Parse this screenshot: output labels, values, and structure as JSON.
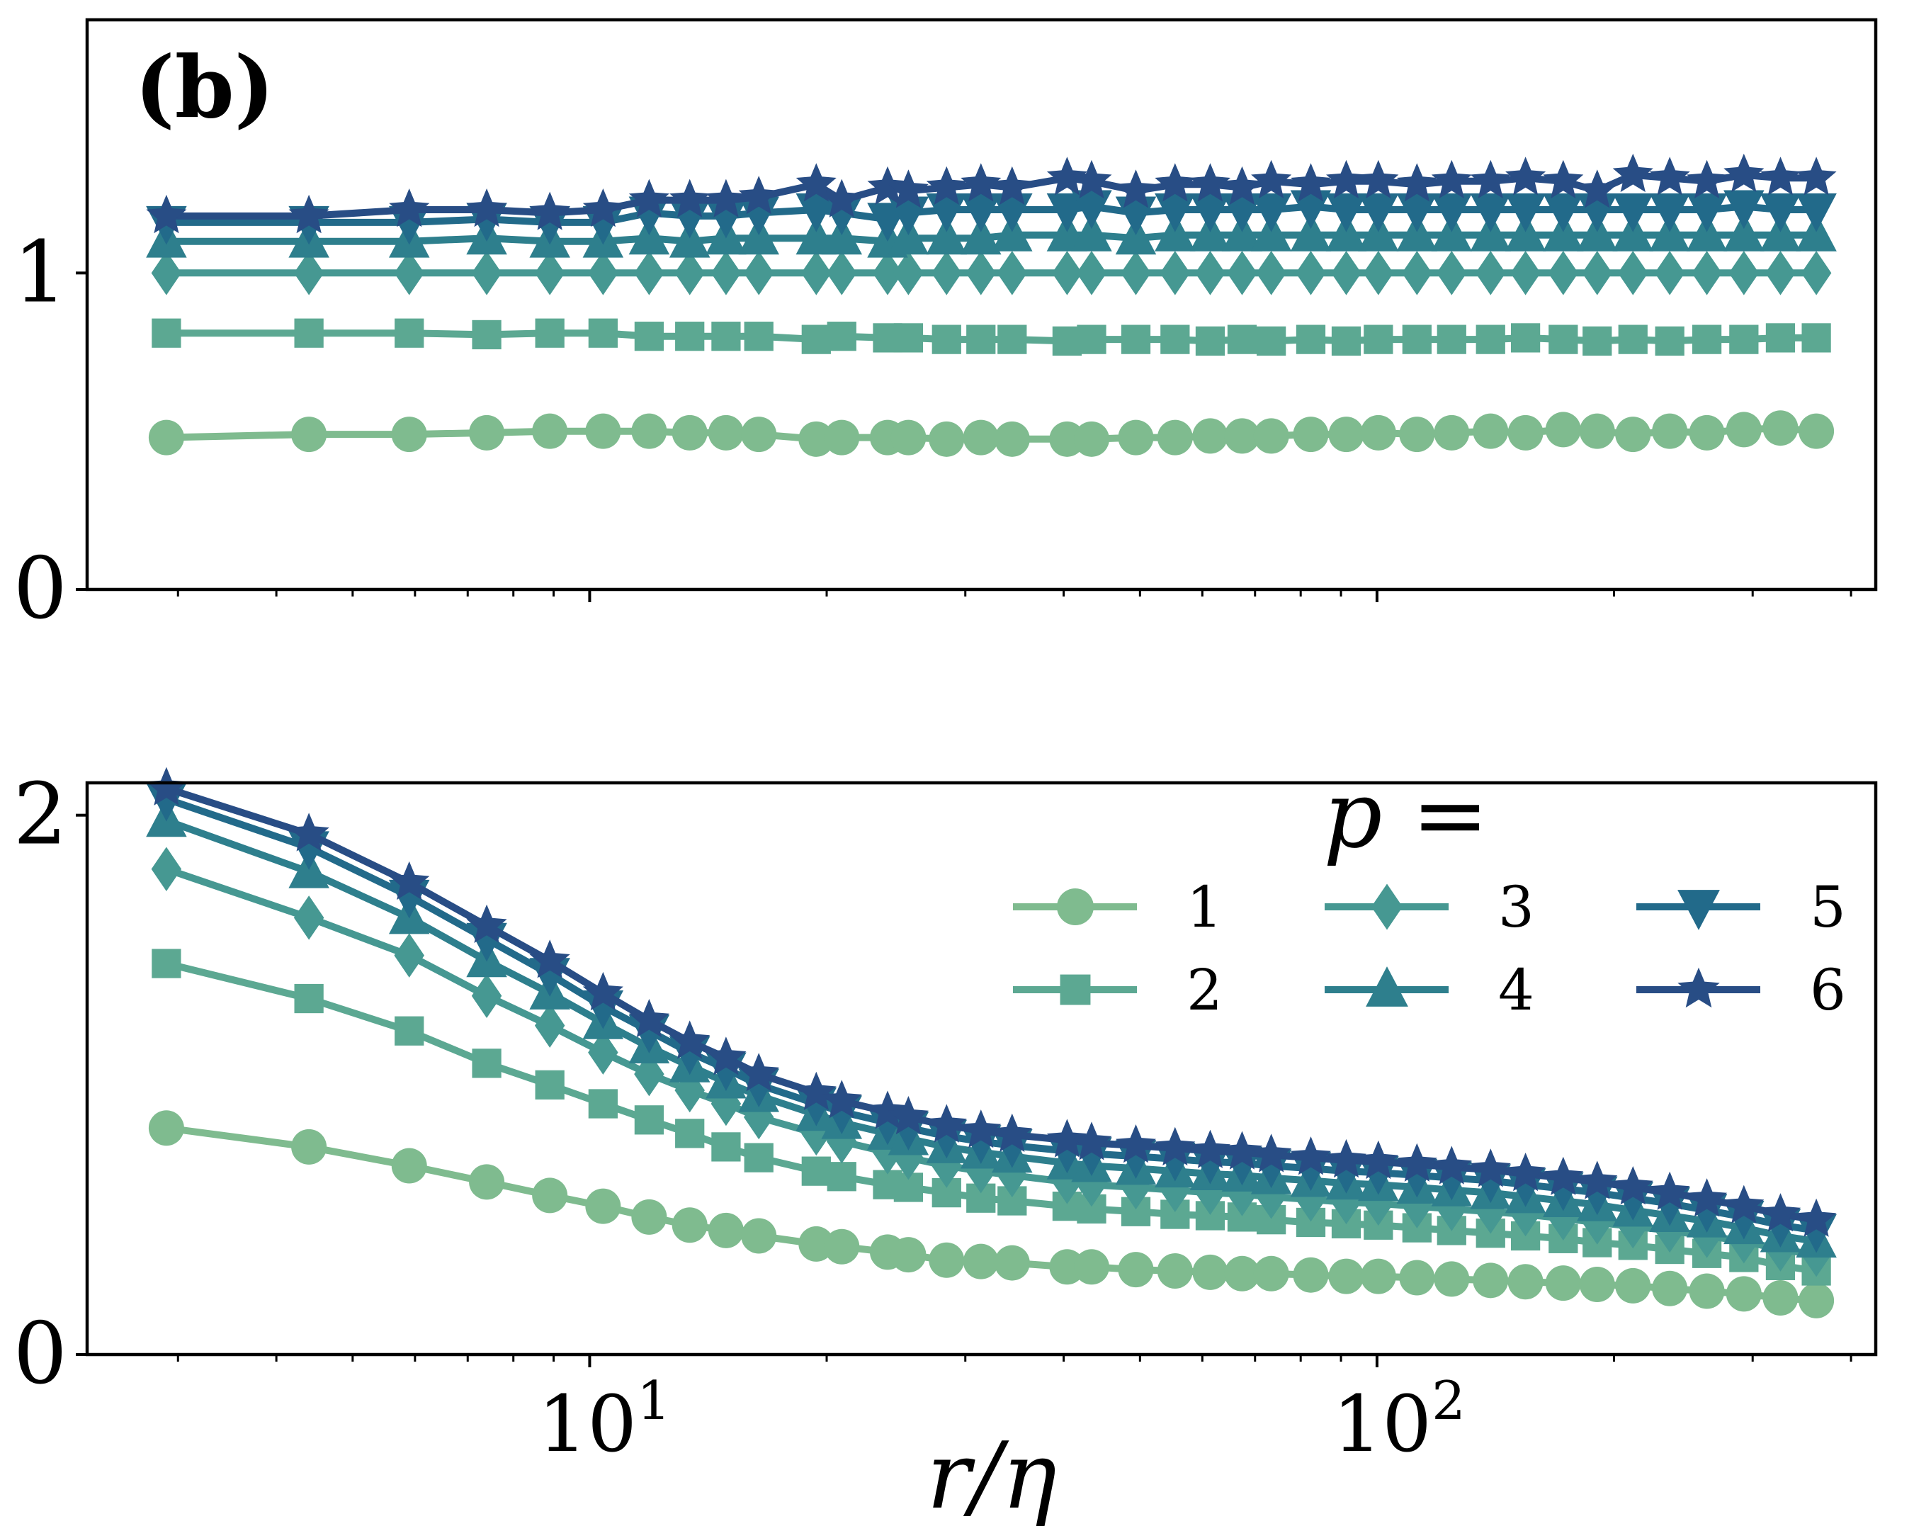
{
  "panel_label": "(b)",
  "xlabel": "r/η",
  "xticks": [
    {
      "base": "10",
      "exp": "1"
    },
    {
      "base": "10",
      "exp": "2"
    }
  ],
  "legend_title": "p =",
  "colors": {
    "s1": "#7fbb8f",
    "s2": "#5ca892",
    "s3": "#469892",
    "s4": "#2e7f8d",
    "s5": "#226a8a",
    "s6": "#284d85",
    "axis": "#000000"
  },
  "chart_data": [
    {
      "type": "line",
      "panel": "top",
      "xscale": "log",
      "xlim": [
        2.3,
        430
      ],
      "ylim": [
        0,
        1.8
      ],
      "yticks": [
        "0",
        "1"
      ],
      "ytick_values": [
        0,
        1
      ],
      "x": [
        2.9,
        4.4,
        5.9,
        7.4,
        8.9,
        10.4,
        11.9,
        13.4,
        14.9,
        16.4,
        19.4,
        20.9,
        23.9,
        25.4,
        28.4,
        31.4,
        34.4,
        40.4,
        43.4,
        49.4,
        55.4,
        61.4,
        67.4,
        73.4,
        82.4,
        91.4,
        100.4,
        112.4,
        124.4,
        139.4,
        154.4,
        172.4,
        190.4,
        211.4,
        235.4,
        262.4,
        292.4,
        325.4,
        361.4
      ],
      "series": [
        {
          "name": "1",
          "marker": "circle",
          "values": [
            0.48,
            0.49,
            0.49,
            0.495,
            0.5,
            0.5,
            0.5,
            0.495,
            0.495,
            0.49,
            0.475,
            0.48,
            0.48,
            0.48,
            0.475,
            0.48,
            0.475,
            0.475,
            0.475,
            0.48,
            0.48,
            0.485,
            0.485,
            0.485,
            0.49,
            0.49,
            0.495,
            0.49,
            0.495,
            0.5,
            0.495,
            0.505,
            0.5,
            0.49,
            0.5,
            0.495,
            0.505,
            0.51,
            0.5
          ]
        },
        {
          "name": "2",
          "marker": "square",
          "values": [
            0.81,
            0.81,
            0.81,
            0.805,
            0.81,
            0.81,
            0.8,
            0.8,
            0.8,
            0.8,
            0.79,
            0.8,
            0.795,
            0.795,
            0.79,
            0.79,
            0.79,
            0.785,
            0.79,
            0.79,
            0.79,
            0.785,
            0.79,
            0.785,
            0.79,
            0.785,
            0.79,
            0.79,
            0.79,
            0.79,
            0.795,
            0.79,
            0.785,
            0.79,
            0.785,
            0.79,
            0.79,
            0.795,
            0.795
          ]
        },
        {
          "name": "3",
          "marker": "diamond",
          "values": [
            1.0,
            1.0,
            1.0,
            1.0,
            1.0,
            1.0,
            1.0,
            1.0,
            1.0,
            1.0,
            1.0,
            1.0,
            1.0,
            1.0,
            1.0,
            1.0,
            1.0,
            1.0,
            1.0,
            1.0,
            1.0,
            1.0,
            1.0,
            1.0,
            1.0,
            1.0,
            1.0,
            1.0,
            1.0,
            1.0,
            1.0,
            1.0,
            1.0,
            1.0,
            1.0,
            1.0,
            1.0,
            1.0,
            1.0
          ]
        },
        {
          "name": "4",
          "marker": "triangle-up",
          "values": [
            1.1,
            1.1,
            1.1,
            1.11,
            1.1,
            1.1,
            1.11,
            1.1,
            1.11,
            1.11,
            1.11,
            1.11,
            1.1,
            1.11,
            1.11,
            1.11,
            1.12,
            1.12,
            1.12,
            1.11,
            1.12,
            1.12,
            1.12,
            1.12,
            1.12,
            1.12,
            1.12,
            1.12,
            1.12,
            1.12,
            1.12,
            1.12,
            1.12,
            1.12,
            1.12,
            1.12,
            1.12,
            1.12,
            1.12
          ]
        },
        {
          "name": "5",
          "marker": "triangle-down",
          "values": [
            1.16,
            1.16,
            1.16,
            1.17,
            1.16,
            1.16,
            1.19,
            1.18,
            1.18,
            1.19,
            1.2,
            1.19,
            1.17,
            1.19,
            1.2,
            1.2,
            1.2,
            1.2,
            1.21,
            1.19,
            1.2,
            1.2,
            1.2,
            1.2,
            1.21,
            1.2,
            1.2,
            1.2,
            1.2,
            1.2,
            1.2,
            1.2,
            1.2,
            1.2,
            1.2,
            1.2,
            1.21,
            1.2,
            1.2
          ]
        },
        {
          "name": "6",
          "marker": "star",
          "values": [
            1.18,
            1.18,
            1.2,
            1.2,
            1.19,
            1.2,
            1.23,
            1.23,
            1.23,
            1.24,
            1.28,
            1.23,
            1.27,
            1.26,
            1.27,
            1.28,
            1.27,
            1.3,
            1.29,
            1.26,
            1.28,
            1.28,
            1.27,
            1.29,
            1.28,
            1.29,
            1.29,
            1.28,
            1.29,
            1.29,
            1.3,
            1.29,
            1.26,
            1.31,
            1.3,
            1.29,
            1.31,
            1.3,
            1.3
          ]
        }
      ]
    },
    {
      "type": "line",
      "panel": "bottom",
      "xscale": "log",
      "xlim": [
        2.3,
        430
      ],
      "ylim": [
        0,
        2.12
      ],
      "yticks": [
        "0",
        "2"
      ],
      "ytick_values": [
        0,
        2
      ],
      "x": [
        2.9,
        4.4,
        5.9,
        7.4,
        8.9,
        10.4,
        11.9,
        13.4,
        14.9,
        16.4,
        19.4,
        20.9,
        23.9,
        25.4,
        28.4,
        31.4,
        34.4,
        40.4,
        43.4,
        49.4,
        55.4,
        61.4,
        67.4,
        73.4,
        82.4,
        91.4,
        100.4,
        112.4,
        124.4,
        139.4,
        154.4,
        172.4,
        190.4,
        211.4,
        235.4,
        262.4,
        292.4,
        325.4,
        361.4
      ],
      "series": [
        {
          "name": "1",
          "marker": "circle",
          "values": [
            0.84,
            0.77,
            0.7,
            0.64,
            0.59,
            0.55,
            0.51,
            0.48,
            0.46,
            0.44,
            0.41,
            0.4,
            0.38,
            0.37,
            0.35,
            0.345,
            0.34,
            0.325,
            0.325,
            0.315,
            0.31,
            0.305,
            0.3,
            0.3,
            0.295,
            0.29,
            0.29,
            0.285,
            0.28,
            0.275,
            0.27,
            0.265,
            0.26,
            0.255,
            0.245,
            0.235,
            0.225,
            0.21,
            0.2
          ]
        },
        {
          "name": "2",
          "marker": "square",
          "values": [
            1.45,
            1.32,
            1.2,
            1.08,
            1.0,
            0.93,
            0.87,
            0.82,
            0.77,
            0.73,
            0.68,
            0.66,
            0.63,
            0.62,
            0.6,
            0.58,
            0.57,
            0.55,
            0.54,
            0.53,
            0.52,
            0.515,
            0.51,
            0.5,
            0.49,
            0.485,
            0.48,
            0.47,
            0.46,
            0.45,
            0.44,
            0.43,
            0.415,
            0.405,
            0.39,
            0.375,
            0.36,
            0.33,
            0.31
          ]
        },
        {
          "name": "3",
          "marker": "diamond",
          "values": [
            1.8,
            1.62,
            1.48,
            1.33,
            1.22,
            1.12,
            1.04,
            0.98,
            0.93,
            0.88,
            0.82,
            0.79,
            0.75,
            0.73,
            0.7,
            0.68,
            0.665,
            0.64,
            0.63,
            0.62,
            0.61,
            0.6,
            0.595,
            0.585,
            0.575,
            0.565,
            0.56,
            0.55,
            0.54,
            0.53,
            0.52,
            0.505,
            0.49,
            0.475,
            0.46,
            0.44,
            0.42,
            0.39,
            0.37
          ]
        },
        {
          "name": "4",
          "marker": "triangle-up",
          "values": [
            1.98,
            1.79,
            1.62,
            1.46,
            1.34,
            1.23,
            1.14,
            1.07,
            1.01,
            0.96,
            0.89,
            0.86,
            0.82,
            0.8,
            0.77,
            0.75,
            0.735,
            0.71,
            0.7,
            0.69,
            0.68,
            0.67,
            0.665,
            0.655,
            0.645,
            0.635,
            0.63,
            0.62,
            0.61,
            0.6,
            0.585,
            0.57,
            0.555,
            0.535,
            0.515,
            0.495,
            0.47,
            0.44,
            0.42
          ]
        },
        {
          "name": "5",
          "marker": "triangle-down",
          "values": [
            2.06,
            1.88,
            1.7,
            1.54,
            1.41,
            1.29,
            1.2,
            1.12,
            1.06,
            1.0,
            0.93,
            0.9,
            0.86,
            0.84,
            0.81,
            0.79,
            0.775,
            0.755,
            0.745,
            0.735,
            0.725,
            0.715,
            0.71,
            0.7,
            0.69,
            0.68,
            0.675,
            0.665,
            0.655,
            0.645,
            0.63,
            0.615,
            0.6,
            0.58,
            0.56,
            0.535,
            0.51,
            0.48,
            0.46
          ]
        },
        {
          "name": "6",
          "marker": "star",
          "values": [
            2.1,
            1.93,
            1.75,
            1.59,
            1.46,
            1.34,
            1.24,
            1.16,
            1.1,
            1.04,
            0.97,
            0.94,
            0.9,
            0.88,
            0.85,
            0.83,
            0.815,
            0.795,
            0.785,
            0.775,
            0.765,
            0.755,
            0.75,
            0.74,
            0.73,
            0.72,
            0.715,
            0.705,
            0.695,
            0.685,
            0.67,
            0.655,
            0.64,
            0.62,
            0.6,
            0.575,
            0.55,
            0.52,
            0.5
          ]
        }
      ]
    }
  ]
}
